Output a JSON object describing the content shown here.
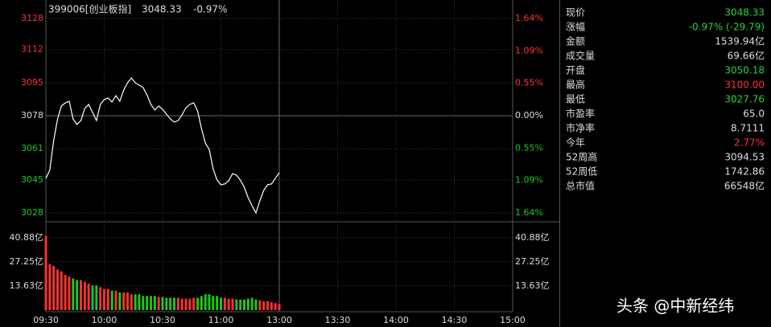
{
  "header": {
    "name": "399006[创业板指]",
    "price": "3048.33",
    "change": "-0.97%",
    "color": "#2ad13a"
  },
  "chart_data": {
    "type": "intraday",
    "up_color": "#ff3232",
    "down_color": "#1ec81e",
    "flat_color": "#dddddd",
    "line_color": "#ffffff",
    "ylim": [
      3028,
      3128
    ],
    "yticks": [
      3128,
      3112,
      3095,
      3078,
      3061,
      3045,
      3028
    ],
    "y2lim": [
      -1.64,
      1.64
    ],
    "y2ticks": [
      {
        "value": 1.64,
        "label": "1.64%"
      },
      {
        "value": 1.09,
        "label": "1.09%"
      },
      {
        "value": 0.55,
        "label": "0.55%"
      },
      {
        "value": 0,
        "label": "0.00%"
      },
      {
        "value": -0.55,
        "label": "0.55%"
      },
      {
        "value": -1.09,
        "label": "1.09%"
      },
      {
        "value": -1.64,
        "label": "1.64%"
      }
    ],
    "xticks": [
      "09:30",
      "10:00",
      "10:30",
      "11:00",
      "13:00",
      "13:30",
      "14:00",
      "14:30",
      "15:00"
    ],
    "price": {
      "values": [
        3045.8,
        3049.9,
        3065.2,
        3076.3,
        3083.0,
        3084.6,
        3085.4,
        3076.3,
        3073.5,
        3075.5,
        3081.7,
        3083.8,
        3079.7,
        3075.5,
        3083.8,
        3086.3,
        3087.1,
        3085.0,
        3088.3,
        3085.4,
        3091.2,
        3094.9,
        3097.4,
        3094.9,
        3093.7,
        3092.5,
        3088.7,
        3083.8,
        3080.9,
        3083.0,
        3081.3,
        3078.8,
        3076.3,
        3074.7,
        3075.5,
        3078.4,
        3082.1,
        3083.8,
        3084.6,
        3080.5,
        3071.4,
        3063.9,
        3060.6,
        3050.7,
        3044.9,
        3042.5,
        3042.9,
        3044.5,
        3048.2,
        3047.4,
        3044.9,
        3041.2,
        3035.8,
        3031.7,
        3028.0,
        3034.2,
        3039.6,
        3042.5,
        3042.9,
        3045.8,
        3048.7,
        null,
        null,
        null,
        null,
        null,
        null,
        null,
        null,
        null,
        null,
        null,
        null,
        null,
        null,
        null,
        null,
        null,
        null,
        null,
        null,
        null,
        null,
        null,
        null,
        null,
        null,
        null,
        null,
        null,
        null,
        null,
        null,
        null,
        null,
        null,
        null,
        null,
        null,
        null,
        null,
        null,
        null,
        null,
        null,
        null,
        null,
        null,
        null,
        null,
        null,
        null,
        null,
        null,
        null,
        null,
        null,
        null,
        null,
        null,
        null
      ]
    },
    "volume": {
      "ylim": [
        0,
        45.5
      ],
      "yticks": [
        {
          "value": 40.88,
          "label": "40.88亿"
        },
        {
          "value": 27.25,
          "label": "27.25亿"
        },
        {
          "value": 13.63,
          "label": "13.63亿"
        }
      ],
      "values": [
        42,
        26,
        25,
        23,
        22,
        20,
        19,
        18,
        17,
        17,
        16,
        15,
        14,
        14,
        13,
        12,
        12,
        11,
        11,
        10,
        10,
        10,
        9,
        9,
        9,
        8,
        8,
        8,
        8,
        7.5,
        7.5,
        7,
        7,
        7,
        7,
        6.5,
        6.5,
        6.5,
        7,
        7,
        8,
        9,
        9,
        8,
        8,
        7,
        7,
        6.5,
        6.5,
        6,
        6,
        6,
        6.5,
        7,
        6,
        5.5,
        5,
        5,
        4.5,
        4,
        3.5,
        null,
        null,
        null,
        null,
        null,
        null,
        null,
        null,
        null,
        null,
        null,
        null,
        null,
        null,
        null,
        null,
        null,
        null,
        null,
        null,
        null,
        null,
        null,
        null,
        null,
        null,
        null,
        null,
        null,
        null,
        null,
        null,
        null,
        null,
        null,
        null,
        null,
        null,
        null,
        null,
        null,
        null,
        null,
        null,
        null,
        null,
        null,
        null,
        null,
        null,
        null,
        null,
        null,
        null,
        null,
        null,
        null,
        null,
        null,
        null
      ]
    }
  },
  "info": [
    {
      "label": "现价",
      "value": "3048.33",
      "color": "#2ad13a"
    },
    {
      "label": "涨幅",
      "value": "-0.97% (-29.79)",
      "color": "#2ad13a"
    },
    {
      "label": "金额",
      "value": "1539.94亿",
      "color": "#dddddd"
    },
    {
      "label": "成交量",
      "value": "69.66亿",
      "color": "#dddddd"
    },
    {
      "label": "开盘",
      "value": "3050.18",
      "color": "#2ad13a"
    },
    {
      "label": "最高",
      "value": "3100.00",
      "color": "#ff3232"
    },
    {
      "label": "最低",
      "value": "3027.76",
      "color": "#2ad13a"
    },
    {
      "label": "市盈率",
      "value": "65.0",
      "color": "#dddddd"
    },
    {
      "label": "市净率",
      "value": "8.7111",
      "color": "#dddddd"
    },
    {
      "label": "今年",
      "value": "2.77%",
      "color": "#ff3232"
    },
    {
      "label": "52周高",
      "value": "3094.53",
      "color": "#dddddd"
    },
    {
      "label": "52周低",
      "value": "1742.86",
      "color": "#dddddd"
    },
    {
      "label": "总市值",
      "value": "66548亿",
      "color": "#dddddd"
    }
  ],
  "watermark": "头条 @中新经纬"
}
